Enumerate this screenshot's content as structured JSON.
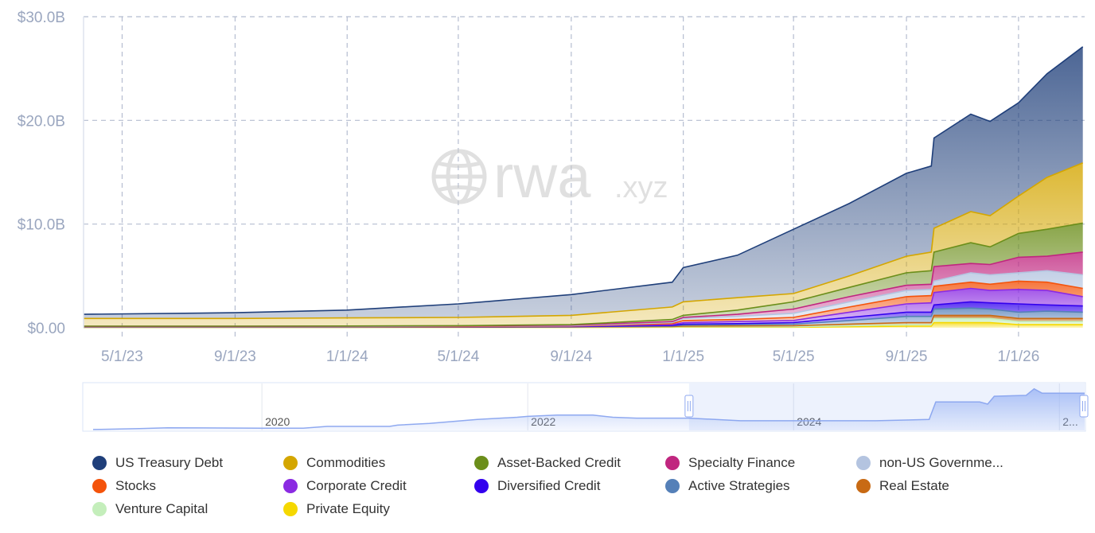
{
  "watermark": {
    "text_main": "rwa",
    "text_suffix": ".xyz"
  },
  "chart_data": {
    "type": "area",
    "stacked": true,
    "title": "",
    "xlabel": "",
    "ylabel": "",
    "xlim": [
      "2023-03-20",
      "2026-03-14"
    ],
    "ylim": [
      0,
      30
    ],
    "y_unit": "billions USD",
    "y_ticks": [
      {
        "value": 0,
        "label": "$0.00"
      },
      {
        "value": 10,
        "label": "$10.0B"
      },
      {
        "value": 20,
        "label": "$20.0B"
      },
      {
        "value": 30,
        "label": "$30.0B"
      }
    ],
    "x_ticks": [
      {
        "date": "2023-05-01",
        "label": "5/1/23"
      },
      {
        "date": "2023-09-01",
        "label": "9/1/23"
      },
      {
        "date": "2024-01-01",
        "label": "1/1/24"
      },
      {
        "date": "2024-05-01",
        "label": "5/1/24"
      },
      {
        "date": "2024-09-01",
        "label": "9/1/24"
      },
      {
        "date": "2025-01-01",
        "label": "1/1/25"
      },
      {
        "date": "2025-05-01",
        "label": "5/1/25"
      },
      {
        "date": "2025-09-01",
        "label": "9/1/25"
      },
      {
        "date": "2026-01-01",
        "label": "1/1/26"
      }
    ],
    "grid": true,
    "legend_position": "bottom",
    "x": [
      "2023-03-20",
      "2023-09-01",
      "2024-01-01",
      "2024-05-01",
      "2024-09-01",
      "2024-12-20",
      "2025-01-01",
      "2025-03-01",
      "2025-05-01",
      "2025-07-01",
      "2025-09-01",
      "2025-09-28",
      "2025-10-01",
      "2025-11-10",
      "2025-12-01",
      "2026-01-01",
      "2026-02-01",
      "2026-03-12"
    ],
    "series_stack_order": "bottom-to-top",
    "series": [
      {
        "name": "Private Equity",
        "color": "#f5d800",
        "values": [
          0.02,
          0.02,
          0.02,
          0.03,
          0.03,
          0.05,
          0.06,
          0.06,
          0.05,
          0.1,
          0.15,
          0.15,
          0.5,
          0.5,
          0.5,
          0.3,
          0.3,
          0.3
        ]
      },
      {
        "name": "Venture Capital",
        "color": "#c4eebb",
        "values": [
          0.01,
          0.01,
          0.01,
          0.01,
          0.02,
          0.03,
          0.04,
          0.04,
          0.05,
          0.1,
          0.15,
          0.15,
          0.4,
          0.4,
          0.4,
          0.3,
          0.3,
          0.3
        ]
      },
      {
        "name": "Real Estate",
        "color": "#c86a14",
        "values": [
          0.02,
          0.02,
          0.02,
          0.02,
          0.02,
          0.04,
          0.05,
          0.08,
          0.1,
          0.15,
          0.2,
          0.2,
          0.3,
          0.3,
          0.3,
          0.3,
          0.3,
          0.3
        ]
      },
      {
        "name": "Active Strategies",
        "color": "#5580b8",
        "values": [
          0.03,
          0.03,
          0.03,
          0.03,
          0.03,
          0.06,
          0.1,
          0.12,
          0.15,
          0.35,
          0.6,
          0.6,
          0.6,
          0.7,
          0.6,
          0.6,
          0.7,
          0.6
        ]
      },
      {
        "name": "Diversified Credit",
        "color": "#3300ee",
        "values": [
          0.01,
          0.01,
          0.01,
          0.01,
          0.02,
          0.04,
          0.1,
          0.1,
          0.15,
          0.3,
          0.4,
          0.4,
          0.4,
          0.6,
          0.6,
          0.8,
          0.6,
          0.6
        ]
      },
      {
        "name": "Corporate Credit",
        "color": "#8b2be2",
        "values": [
          0.01,
          0.01,
          0.01,
          0.02,
          0.03,
          0.08,
          0.15,
          0.2,
          0.2,
          0.5,
          0.8,
          0.9,
          1.2,
          1.3,
          1.2,
          1.4,
          1.4,
          0.9
        ]
      },
      {
        "name": "Stocks",
        "color": "#f4530b",
        "values": [
          0.01,
          0.01,
          0.01,
          0.01,
          0.02,
          0.1,
          0.2,
          0.2,
          0.3,
          0.5,
          0.7,
          0.7,
          0.6,
          0.6,
          0.6,
          0.8,
          0.8,
          0.8
        ]
      },
      {
        "name": "non-US Government Debt",
        "display_name": "non-US Governme...",
        "color": "#b4c4e0",
        "values": [
          0.01,
          0.01,
          0.01,
          0.02,
          0.03,
          0.1,
          0.2,
          0.3,
          0.4,
          0.5,
          0.6,
          0.6,
          0.5,
          0.9,
          0.9,
          0.8,
          1.1,
          1.3
        ]
      },
      {
        "name": "Specialty Finance",
        "color": "#c0267f",
        "values": [
          0.02,
          0.02,
          0.03,
          0.03,
          0.05,
          0.1,
          0.1,
          0.2,
          0.4,
          0.5,
          0.5,
          0.5,
          1.4,
          0.9,
          1.0,
          1.5,
          1.4,
          2.2
        ]
      },
      {
        "name": "Asset-Backed Credit",
        "color": "#6b8e1a",
        "values": [
          0.01,
          0.01,
          0.02,
          0.02,
          0.05,
          0.2,
          0.2,
          0.4,
          0.7,
          0.9,
          1.2,
          1.3,
          1.4,
          2.0,
          1.7,
          2.3,
          2.6,
          2.8
        ]
      },
      {
        "name": "Commodities",
        "color": "#d4a600",
        "values": [
          0.75,
          0.75,
          0.78,
          0.8,
          0.9,
          1.2,
          1.3,
          1.2,
          0.8,
          1.1,
          1.6,
          1.8,
          2.3,
          3.0,
          3.0,
          3.6,
          5.0,
          5.8
        ]
      },
      {
        "name": "US Treasury Debt",
        "color": "#1f3f7a",
        "values": [
          0.4,
          0.55,
          0.75,
          1.3,
          2.0,
          2.4,
          3.3,
          4.1,
          6.2,
          7.0,
          8.0,
          8.3,
          8.7,
          9.4,
          9.1,
          9.0,
          10.0,
          11.2
        ]
      }
    ]
  },
  "navigator": {
    "year_labels": [
      {
        "year": 2020,
        "label": "2020"
      },
      {
        "year": 2022,
        "label": "2022"
      },
      {
        "year": 2024,
        "label": "2024"
      },
      {
        "year": 2026,
        "label": "2..."
      }
    ],
    "range": [
      2018.73,
      2026.19
    ],
    "selection": [
      "2023-03-20",
      "2026-03-14"
    ],
    "overview_relative": [
      [
        2018.73,
        0.02
      ],
      [
        2019.08,
        0.04
      ],
      [
        2019.29,
        0.06
      ],
      [
        2020.0,
        0.05
      ],
      [
        2020.31,
        0.05
      ],
      [
        2020.49,
        0.09
      ],
      [
        2020.96,
        0.09
      ],
      [
        2021.02,
        0.12
      ],
      [
        2021.26,
        0.16
      ],
      [
        2021.62,
        0.25
      ],
      [
        2021.92,
        0.3
      ],
      [
        2022.0,
        0.32
      ],
      [
        2022.22,
        0.35
      ],
      [
        2022.49,
        0.35
      ],
      [
        2022.64,
        0.3
      ],
      [
        2022.82,
        0.28
      ],
      [
        2023.21,
        0.28
      ],
      [
        2023.6,
        0.22
      ],
      [
        2024.62,
        0.22
      ],
      [
        2025.02,
        0.25
      ],
      [
        2025.07,
        0.65
      ],
      [
        2025.4,
        0.65
      ],
      [
        2025.46,
        0.6
      ],
      [
        2025.51,
        0.78
      ],
      [
        2025.75,
        0.8
      ],
      [
        2025.81,
        0.95
      ],
      [
        2025.87,
        0.85
      ],
      [
        2026.19,
        0.85
      ]
    ]
  },
  "legend": {
    "order": [
      "US Treasury Debt",
      "Commodities",
      "Asset-Backed Credit",
      "Specialty Finance",
      "non-US Government Debt",
      "Stocks",
      "Corporate Credit",
      "Diversified Credit",
      "Active Strategies",
      "Real Estate",
      "Venture Capital",
      "Private Equity"
    ]
  }
}
